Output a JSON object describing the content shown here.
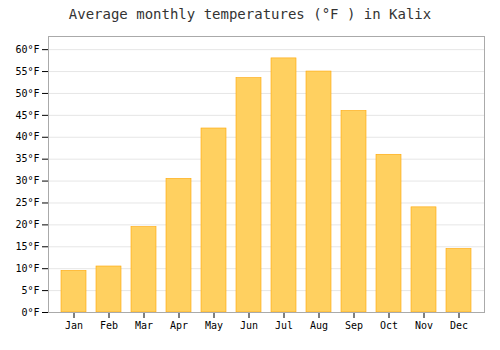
{
  "chart_data": {
    "type": "bar",
    "title": "Average monthly temperatures (°F ) in Kalix",
    "categories": [
      "Jan",
      "Feb",
      "Mar",
      "Apr",
      "May",
      "Jun",
      "Jul",
      "Aug",
      "Sep",
      "Oct",
      "Nov",
      "Dec"
    ],
    "values": [
      9.5,
      10.5,
      19.5,
      30.5,
      42.0,
      53.5,
      58.0,
      55.0,
      46.0,
      36.0,
      24.0,
      14.5
    ],
    "color": "#FFD060",
    "ylim": [
      0,
      63
    ],
    "yticks": [
      {
        "value": 0,
        "label": "0°F"
      },
      {
        "value": 5,
        "label": "5°F"
      },
      {
        "value": 10,
        "label": "10°F"
      },
      {
        "value": 15,
        "label": "15°F"
      },
      {
        "value": 20,
        "label": "20°F"
      },
      {
        "value": 25,
        "label": "25°F"
      },
      {
        "value": 30,
        "label": "30°F"
      },
      {
        "value": 35,
        "label": "35°F"
      },
      {
        "value": 40,
        "label": "40°F"
      },
      {
        "value": 45,
        "label": "45°F"
      },
      {
        "value": 50,
        "label": "50°F"
      },
      {
        "value": 55,
        "label": "55°F"
      },
      {
        "value": 60,
        "label": "60°F"
      }
    ],
    "grid": true
  }
}
